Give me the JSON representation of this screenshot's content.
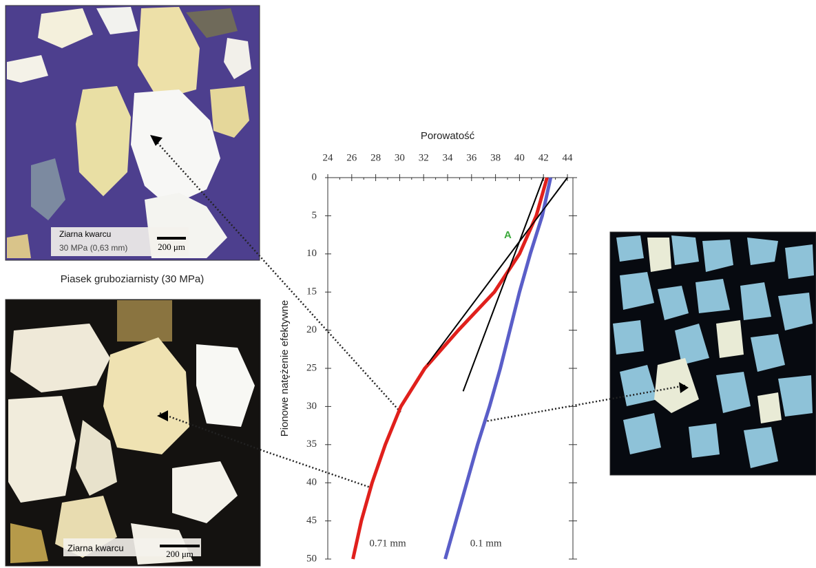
{
  "chart_data": {
    "type": "line",
    "title": "Porowatość",
    "y_label": "Pionowe natężenie efektywne",
    "xlim": [
      24,
      44
    ],
    "xticks": [
      24,
      26,
      28,
      30,
      32,
      34,
      36,
      38,
      40,
      42,
      44
    ],
    "ylim": [
      0,
      50
    ],
    "yticks": [
      0,
      5,
      10,
      15,
      20,
      25,
      30,
      35,
      40,
      45,
      50
    ],
    "y_inverted": true,
    "x_axis_position": "top",
    "series": [
      {
        "name": "0.71 mm",
        "color": "#e0201c",
        "x": [
          42.3,
          41.4,
          40.0,
          37.9,
          34.9,
          32.1,
          30.1,
          28.8,
          27.7,
          26.8,
          26.1
        ],
        "y": [
          0,
          5,
          10,
          15,
          20,
          25,
          30,
          35,
          40,
          45,
          50
        ],
        "label_at": [
          29,
          48
        ]
      },
      {
        "name": "0.1 mm",
        "color": "#5a5ec8",
        "x": [
          42.6,
          41.9,
          40.9,
          40.0,
          39.2,
          38.4,
          37.5,
          36.5,
          35.6,
          34.7,
          33.8
        ],
        "y": [
          0,
          5,
          10,
          15,
          20,
          25,
          30,
          35,
          40,
          45,
          50
        ],
        "label_at": [
          37.2,
          48
        ]
      }
    ],
    "tangent_lines": [
      {
        "color": "#000000",
        "x": [
          44,
          32.3
        ],
        "y": [
          0,
          24.5
        ]
      },
      {
        "color": "#000000",
        "x": [
          42,
          35.3
        ],
        "y": [
          0,
          28
        ]
      }
    ],
    "annotations": [
      {
        "text": "A",
        "x": 39.6,
        "y": 8.3,
        "color": "#3aa83a"
      }
    ]
  },
  "micrographs": [
    {
      "labels": [
        "Ziarna kwarcu",
        "30 MPa (0,63 mm)"
      ],
      "scale": "200 μm",
      "caption": "Piasek gruboziarnisty (30 MPa)"
    },
    {
      "labels": [
        "Ziarna kwarcu"
      ],
      "scale": "200 μm"
    },
    {
      "labels": []
    }
  ]
}
